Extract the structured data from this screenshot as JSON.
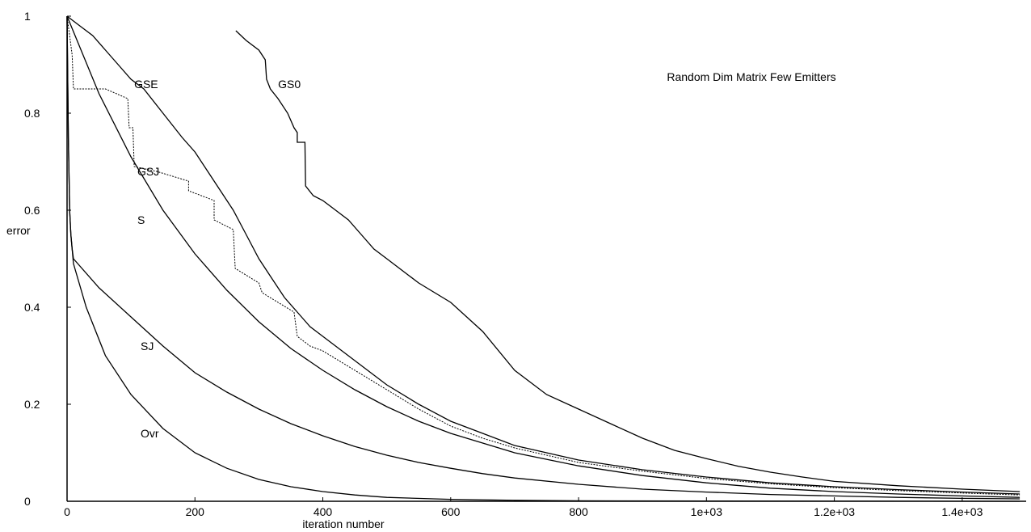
{
  "chart_data": {
    "type": "line",
    "title": "Random Dim Matrix Few Emitters",
    "xlabel": "iteration number",
    "ylabel": "error",
    "xlim": [
      0,
      1500
    ],
    "ylim": [
      0,
      1
    ],
    "grid": false,
    "legend": "none",
    "x_ticks": [
      {
        "value": 0,
        "label": "0"
      },
      {
        "value": 200,
        "label": "200"
      },
      {
        "value": 400,
        "label": "400"
      },
      {
        "value": 600,
        "label": "600"
      },
      {
        "value": 800,
        "label": "800"
      },
      {
        "value": 1000,
        "label": "1e+03"
      },
      {
        "value": 1200,
        "label": "1.2e+03"
      },
      {
        "value": 1400,
        "label": "1.4e+03"
      }
    ],
    "y_ticks": [
      {
        "value": 0,
        "label": "0"
      },
      {
        "value": 0.2,
        "label": "0.2"
      },
      {
        "value": 0.4,
        "label": "0.4"
      },
      {
        "value": 0.6,
        "label": "0.6"
      },
      {
        "value": 0.8,
        "label": "0.8"
      },
      {
        "value": 1,
        "label": "1"
      }
    ],
    "series": [
      {
        "name": "GS0",
        "dashed": false,
        "label_at": [
          330,
          0.86
        ],
        "points": [
          [
            264,
            0.97
          ],
          [
            280,
            0.95
          ],
          [
            300,
            0.93
          ],
          [
            310,
            0.91
          ],
          [
            312,
            0.87
          ],
          [
            318,
            0.85
          ],
          [
            330,
            0.83
          ],
          [
            345,
            0.8
          ],
          [
            355,
            0.77
          ],
          [
            360,
            0.76
          ],
          [
            360,
            0.74
          ],
          [
            372,
            0.74
          ],
          [
            373,
            0.65
          ],
          [
            385,
            0.63
          ],
          [
            400,
            0.62
          ],
          [
            420,
            0.6
          ],
          [
            440,
            0.58
          ],
          [
            460,
            0.55
          ],
          [
            480,
            0.52
          ],
          [
            500,
            0.5
          ],
          [
            550,
            0.45
          ],
          [
            600,
            0.41
          ],
          [
            650,
            0.35
          ],
          [
            700,
            0.27
          ],
          [
            750,
            0.22
          ],
          [
            800,
            0.19
          ],
          [
            850,
            0.16
          ],
          [
            900,
            0.13
          ],
          [
            950,
            0.105
          ],
          [
            1000,
            0.088
          ],
          [
            1050,
            0.072
          ],
          [
            1100,
            0.06
          ],
          [
            1150,
            0.05
          ],
          [
            1200,
            0.041
          ],
          [
            1300,
            0.032
          ],
          [
            1400,
            0.025
          ],
          [
            1490,
            0.02
          ]
        ]
      },
      {
        "name": "GSE",
        "dashed": false,
        "label_at": [
          105,
          0.86
        ],
        "points": [
          [
            0,
            1
          ],
          [
            20,
            0.98
          ],
          [
            40,
            0.96
          ],
          [
            60,
            0.93
          ],
          [
            80,
            0.9
          ],
          [
            100,
            0.87
          ],
          [
            120,
            0.85
          ],
          [
            150,
            0.8
          ],
          [
            180,
            0.75
          ],
          [
            200,
            0.72
          ],
          [
            220,
            0.68
          ],
          [
            240,
            0.64
          ],
          [
            260,
            0.6
          ],
          [
            280,
            0.55
          ],
          [
            300,
            0.5
          ],
          [
            320,
            0.46
          ],
          [
            340,
            0.42
          ],
          [
            360,
            0.39
          ],
          [
            380,
            0.36
          ],
          [
            400,
            0.34
          ],
          [
            450,
            0.29
          ],
          [
            500,
            0.24
          ],
          [
            550,
            0.2
          ],
          [
            600,
            0.165
          ],
          [
            650,
            0.14
          ],
          [
            700,
            0.115
          ],
          [
            800,
            0.085
          ],
          [
            900,
            0.065
          ],
          [
            1000,
            0.05
          ],
          [
            1100,
            0.038
          ],
          [
            1200,
            0.03
          ],
          [
            1300,
            0.024
          ],
          [
            1400,
            0.019
          ],
          [
            1490,
            0.015
          ]
        ]
      },
      {
        "name": "GSJ",
        "dashed": true,
        "label_at": [
          110,
          0.68
        ],
        "points": [
          [
            0,
            1
          ],
          [
            8,
            0.92
          ],
          [
            10,
            0.85
          ],
          [
            40,
            0.85
          ],
          [
            60,
            0.85
          ],
          [
            95,
            0.83
          ],
          [
            97,
            0.77
          ],
          [
            103,
            0.77
          ],
          [
            105,
            0.69
          ],
          [
            140,
            0.68
          ],
          [
            190,
            0.66
          ],
          [
            190,
            0.64
          ],
          [
            230,
            0.62
          ],
          [
            230,
            0.58
          ],
          [
            260,
            0.56
          ],
          [
            263,
            0.48
          ],
          [
            300,
            0.45
          ],
          [
            305,
            0.43
          ],
          [
            330,
            0.41
          ],
          [
            355,
            0.39
          ],
          [
            360,
            0.34
          ],
          [
            380,
            0.32
          ],
          [
            400,
            0.31
          ],
          [
            450,
            0.27
          ],
          [
            500,
            0.23
          ],
          [
            550,
            0.19
          ],
          [
            600,
            0.155
          ],
          [
            650,
            0.13
          ],
          [
            700,
            0.11
          ],
          [
            800,
            0.08
          ],
          [
            900,
            0.062
          ],
          [
            1000,
            0.047
          ],
          [
            1100,
            0.036
          ],
          [
            1200,
            0.028
          ],
          [
            1300,
            0.022
          ],
          [
            1400,
            0.017
          ],
          [
            1490,
            0.013
          ]
        ]
      },
      {
        "name": "S",
        "dashed": false,
        "label_at": [
          110,
          0.58
        ],
        "points": [
          [
            0,
            1
          ],
          [
            50,
            0.84
          ],
          [
            100,
            0.71
          ],
          [
            150,
            0.6
          ],
          [
            200,
            0.51
          ],
          [
            250,
            0.435
          ],
          [
            300,
            0.37
          ],
          [
            350,
            0.315
          ],
          [
            400,
            0.27
          ],
          [
            450,
            0.23
          ],
          [
            500,
            0.195
          ],
          [
            550,
            0.165
          ],
          [
            600,
            0.14
          ],
          [
            650,
            0.12
          ],
          [
            700,
            0.1
          ],
          [
            800,
            0.073
          ],
          [
            900,
            0.053
          ],
          [
            1000,
            0.038
          ],
          [
            1100,
            0.027
          ],
          [
            1200,
            0.02
          ],
          [
            1300,
            0.015
          ],
          [
            1400,
            0.011
          ],
          [
            1490,
            0.008
          ]
        ]
      },
      {
        "name": "SJ",
        "dashed": false,
        "label_at": [
          115,
          0.32
        ],
        "points": [
          [
            0,
            1
          ],
          [
            2,
            0.75
          ],
          [
            4,
            0.6
          ],
          [
            6,
            0.55
          ],
          [
            8,
            0.52
          ],
          [
            10,
            0.5
          ],
          [
            50,
            0.44
          ],
          [
            100,
            0.38
          ],
          [
            150,
            0.32
          ],
          [
            200,
            0.265
          ],
          [
            250,
            0.225
          ],
          [
            300,
            0.19
          ],
          [
            350,
            0.16
          ],
          [
            400,
            0.135
          ],
          [
            450,
            0.113
          ],
          [
            500,
            0.095
          ],
          [
            550,
            0.08
          ],
          [
            600,
            0.068
          ],
          [
            650,
            0.057
          ],
          [
            700,
            0.048
          ],
          [
            800,
            0.035
          ],
          [
            900,
            0.025
          ],
          [
            1000,
            0.019
          ],
          [
            1100,
            0.014
          ],
          [
            1200,
            0.011
          ],
          [
            1300,
            0.008
          ],
          [
            1400,
            0.006
          ],
          [
            1490,
            0.005
          ]
        ]
      },
      {
        "name": "Ovr",
        "dashed": false,
        "label_at": [
          115,
          0.14
        ],
        "points": [
          [
            0,
            1
          ],
          [
            2,
            0.75
          ],
          [
            4,
            0.6
          ],
          [
            6,
            0.55
          ],
          [
            8,
            0.52
          ],
          [
            10,
            0.49
          ],
          [
            30,
            0.4
          ],
          [
            60,
            0.3
          ],
          [
            100,
            0.22
          ],
          [
            150,
            0.15
          ],
          [
            200,
            0.1
          ],
          [
            250,
            0.068
          ],
          [
            300,
            0.045
          ],
          [
            350,
            0.03
          ],
          [
            400,
            0.02
          ],
          [
            450,
            0.013
          ],
          [
            500,
            0.008
          ],
          [
            600,
            0.004
          ],
          [
            700,
            0.002
          ],
          [
            800,
            0.001
          ],
          [
            1000,
            0.0005
          ],
          [
            1490,
            0
          ]
        ]
      }
    ]
  }
}
